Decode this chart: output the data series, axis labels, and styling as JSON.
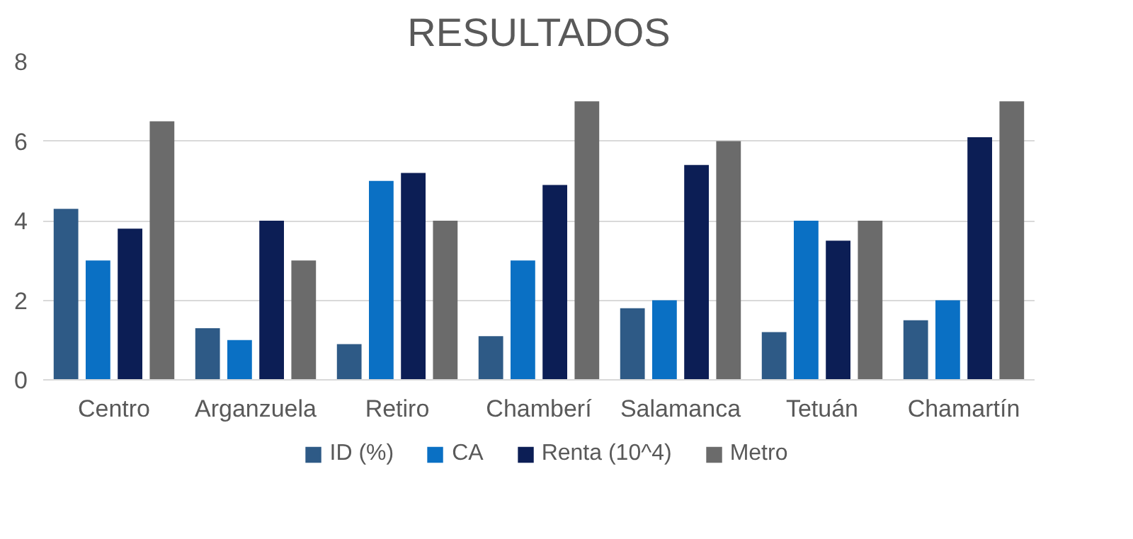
{
  "chart_data": {
    "type": "bar",
    "title": "RESULTADOS",
    "categories": [
      "Centro",
      "Arganzuela",
      "Retiro",
      "Chamberí",
      "Salamanca",
      "Tetuán",
      "Chamartín"
    ],
    "series": [
      {
        "name": "ID (%)",
        "color": "#2e5a86",
        "values": [
          4.3,
          1.3,
          0.9,
          1.1,
          1.8,
          1.2,
          1.5
        ]
      },
      {
        "name": "CA",
        "color": "#0a70c4",
        "values": [
          3,
          1,
          5,
          3,
          2,
          4,
          2
        ]
      },
      {
        "name": "Renta (10^4)",
        "color": "#0c1e55",
        "values": [
          3.8,
          4,
          5.2,
          4.9,
          5.4,
          3.5,
          6.1
        ]
      },
      {
        "name": "Metro",
        "color": "#6b6b6b",
        "values": [
          6.5,
          3,
          4,
          7,
          6,
          4,
          7
        ]
      }
    ],
    "ylim": [
      0,
      8
    ],
    "yticks": [
      0,
      2,
      4,
      6,
      8
    ],
    "grid": "y",
    "legend": "bottom"
  }
}
